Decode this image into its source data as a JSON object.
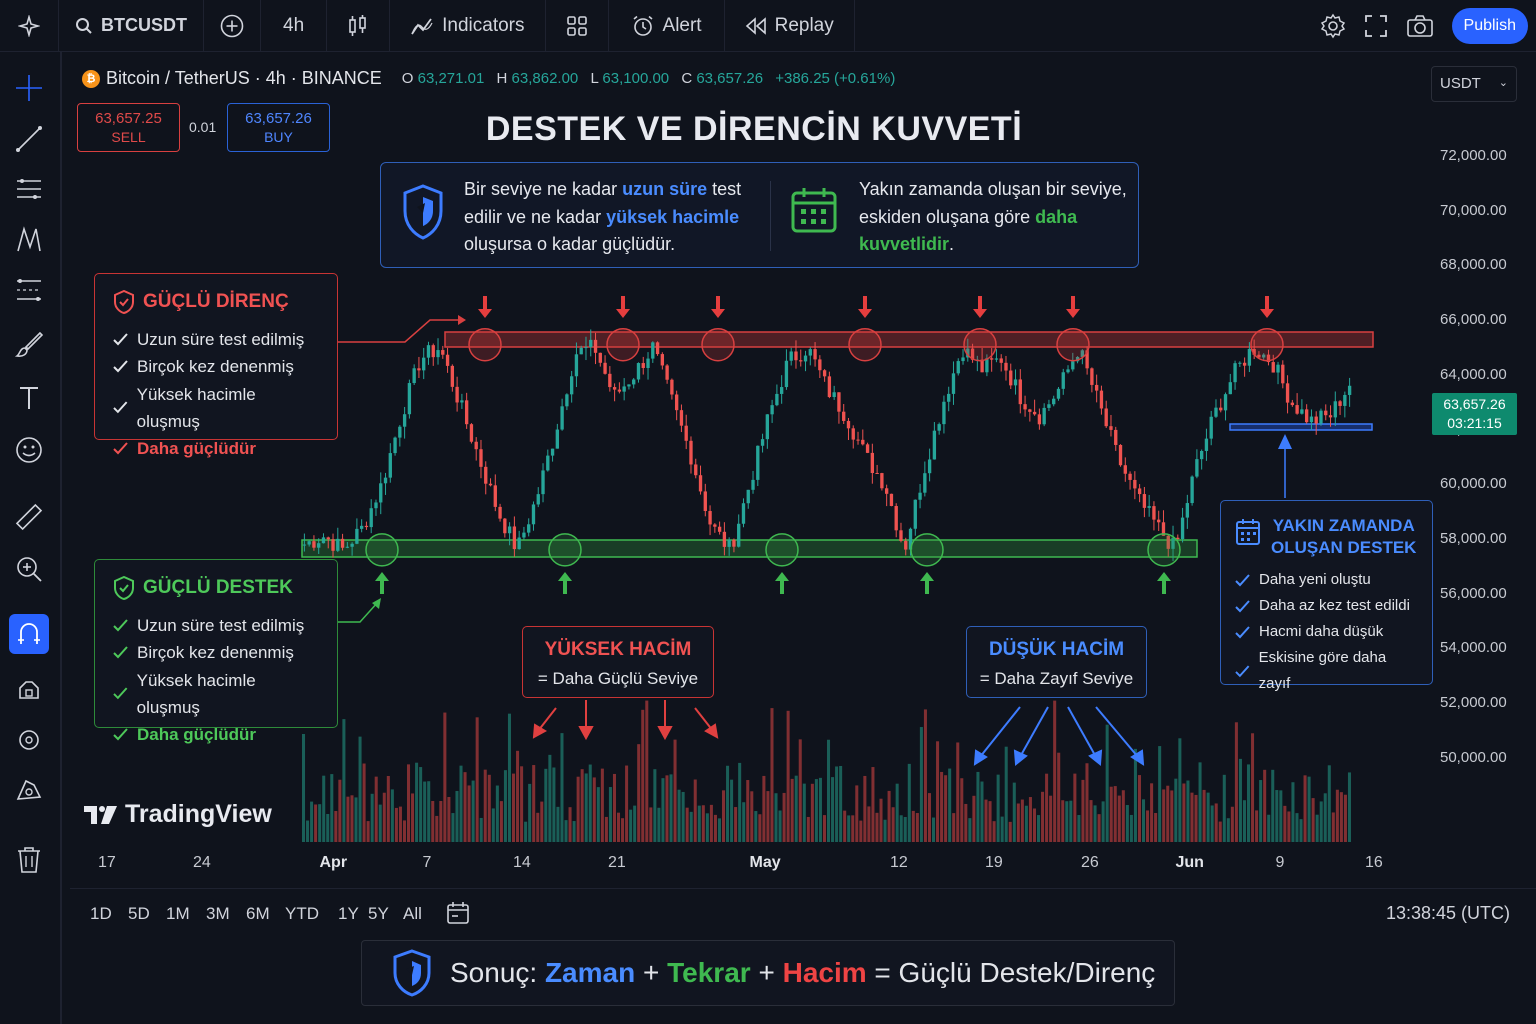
{
  "topbar": {
    "symbol": "BTCUSDT",
    "interval": "4h",
    "indicators": "Indicators",
    "alert": "Alert",
    "replay": "Replay",
    "publish": "Publish"
  },
  "legend": {
    "title": "Bitcoin / TetherUS · 4h · BINANCE",
    "o_label": "O",
    "o": "63,271.01",
    "h_label": "H",
    "h": "63,862.00",
    "l_label": "L",
    "l": "63,100.00",
    "c_label": "C",
    "c": "63,657.26",
    "change": "+386.25 (+0.61%)"
  },
  "trade": {
    "sell_price": "63,657.25",
    "sell_label": "SELL",
    "spread": "0.01",
    "buy_price": "63,657.26",
    "buy_label": "BUY"
  },
  "currency": "USDT",
  "title": "DESTEK VE DİRENCİN KUVVETİ",
  "info": {
    "left": {
      "p1": "Bir seviye ne kadar ",
      "h1": "uzun süre",
      "p2": " test edilir ve ne kadar ",
      "h2": "yüksek hacimle",
      "p3": " oluşursa o kadar güçlüdür."
    },
    "right": {
      "p1": "Yakın zamanda oluşan bir seviye, eskiden oluşana göre ",
      "h1": "daha kuvvetlidir",
      "p2": "."
    }
  },
  "resistance": {
    "title": "GÜÇLÜ DİRENÇ",
    "items": [
      "Uzun süre test edilmiş",
      "Birçok kez denenmiş",
      "Yüksek hacimle oluşmuş",
      "Daha güçlüdür"
    ]
  },
  "support": {
    "title": "GÜÇLÜ DESTEK",
    "items": [
      "Uzun süre test edilmiş",
      "Birçok kez denenmiş",
      "Yüksek hacimle oluşmuş",
      "Daha güçlüdür"
    ]
  },
  "recent": {
    "title1": "YAKIN ZAMANDA",
    "title2": "OLUŞAN DESTEK",
    "items": [
      "Daha yeni oluştu",
      "Daha az kez test edildi",
      "Hacmi daha düşük",
      "Eskisine göre daha zayıf"
    ]
  },
  "vol_high": {
    "title": "YÜKSEK HACİM",
    "sub": "= Daha Güçlü Seviye"
  },
  "vol_low": {
    "title": "DÜŞÜK HACİM",
    "sub": "= Daha Zayıf Seviye"
  },
  "price_axis": [
    "72,000.00",
    "70,000.00",
    "68,000.00",
    "66,000.00",
    "64,000.00",
    "62,000.00",
    "60,000.00",
    "58,000.00",
    "56,000.00",
    "54,000.00",
    "52,000.00",
    "50,000.00"
  ],
  "price_tag": {
    "price": "63,657.26",
    "countdown": "03:21:15"
  },
  "time_axis": [
    "17",
    "24",
    "Apr",
    "7",
    "14",
    "21",
    "May",
    "12",
    "19",
    "26",
    "Jun",
    "9",
    "16"
  ],
  "ranges": [
    "1D",
    "5D",
    "1M",
    "3M",
    "6M",
    "YTD",
    "1Y",
    "5Y",
    "All"
  ],
  "clock": "13:38:45 (UTC)",
  "brand": "TradingView",
  "summary": {
    "prefix": "Sonuç: ",
    "w1": "Zaman",
    "plus1": " + ",
    "w2": "Tekrar",
    "plus2": " + ",
    "w3": "Hacim",
    "suffix": " = Güçlü Destek/Direnç"
  },
  "colors": {
    "up": "#26a69a",
    "down": "#ef5350",
    "accent": "#2962ff",
    "resistance": "#ef4444",
    "support": "#3fb950"
  },
  "chart_data": {
    "type": "candlestick",
    "symbol": "BTCUSDT",
    "resistance_level": 65100,
    "support_level": 57600,
    "recent_support_level": 62300,
    "ylim": [
      49000,
      73000
    ],
    "close_path": [
      57800,
      58100,
      57600,
      58400,
      60000,
      62500,
      64600,
      65000,
      63000,
      61000,
      59000,
      57600,
      59500,
      62000,
      64800,
      65000,
      63200,
      64000,
      65000,
      63000,
      61000,
      58500,
      57600,
      60000,
      62500,
      64500,
      65000,
      63500,
      62500,
      61000,
      60000,
      57600,
      60500,
      63000,
      65000,
      64200,
      64600,
      63200,
      62500,
      63500,
      65000,
      63000,
      61000,
      59500,
      58500,
      57600,
      60500,
      62500,
      64000,
      65000,
      64500,
      63000,
      62300,
      62500,
      63657
    ]
  }
}
